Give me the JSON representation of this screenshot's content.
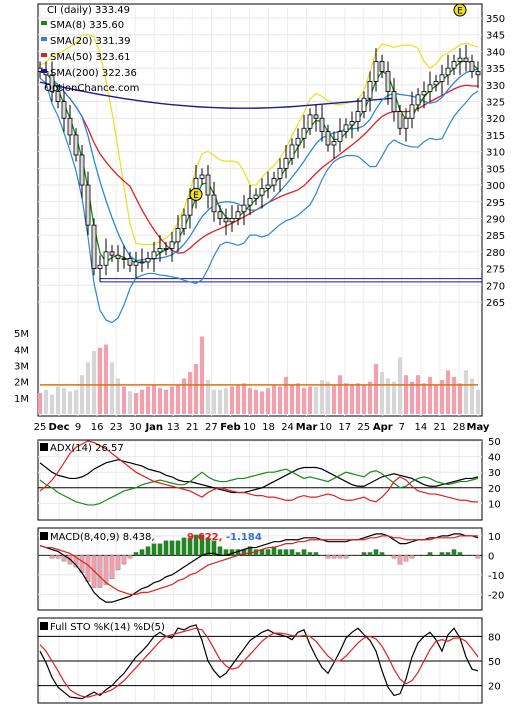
{
  "colors": {
    "sma8": "#1a8a1a",
    "sma20": "#2f86d4",
    "sma50": "#e02020",
    "sma200": "#1a1a9a",
    "upper_band": "#e8e020",
    "up_candle": "#111111",
    "up_fill": "#ffffff",
    "down_fill": "#d8d8d8",
    "volume_up": "#f2a0ae",
    "volume_down": "#d6d6d6",
    "volume_avg": "#e07010",
    "adx": "#000000",
    "plus_di": "#1a8a1a",
    "minus_di": "#e02020",
    "macd": "#000000",
    "signal": "#e02020",
    "hist_pos": "#1a8a1a",
    "hist_neg": "#f2a0ae",
    "sto_k": "#000000",
    "sto_d": "#e02020",
    "marker_fill": "#f0e020"
  },
  "legend": {
    "title": "CI (daily) 333.49",
    "sma8": "SMA(8) 335.60",
    "sma20": "SMA(20) 331.39",
    "sma50": "SMA(50) 323.61",
    "sma200": "SMA(200) 322.36",
    "watermark": "OptionChance.com"
  },
  "chart_data": [
    {
      "type": "candlestick",
      "panel": "price",
      "ylim": [
        262,
        353
      ],
      "y_ticks": [
        350,
        345,
        340,
        335,
        330,
        325,
        320,
        315,
        310,
        305,
        300,
        295,
        290,
        285,
        280,
        275,
        270,
        265
      ],
      "x_tick_labels": [
        "25",
        "Dec",
        "9",
        "16",
        "23",
        "30",
        "Jan",
        "13",
        "21",
        "27",
        "Feb",
        "10",
        "18",
        "24",
        "Mar",
        "10",
        "17",
        "25",
        "Apr",
        "7",
        "14",
        "21",
        "28",
        "May"
      ],
      "closes": [
        334,
        333,
        328,
        325,
        320,
        315,
        309,
        300,
        288,
        275,
        276,
        280,
        279,
        278,
        278,
        276,
        277,
        277,
        278,
        280,
        281,
        281,
        283,
        287,
        291,
        296,
        302,
        303,
        297,
        292,
        290,
        289,
        290,
        292,
        294,
        296,
        297,
        299,
        300,
        302,
        305,
        308,
        312,
        314,
        317,
        321,
        320,
        316,
        312,
        313,
        316,
        318,
        319,
        322,
        326,
        331,
        337,
        334,
        328,
        322,
        317,
        320,
        324,
        327,
        328,
        330,
        331,
        333,
        335,
        337,
        338,
        337,
        334,
        333
      ],
      "support_lines": [
        272,
        271
      ],
      "earnings_markers": [
        {
          "label": "E",
          "x_index": 26
        },
        {
          "label": "E",
          "x_index": 70
        }
      ]
    },
    {
      "type": "bar",
      "panel": "volume",
      "y_tick_labels": [
        "5M",
        "4M",
        "3M",
        "2M",
        "1M"
      ],
      "values_millions": [
        1.3,
        1.5,
        1.2,
        1.7,
        1.6,
        1.4,
        1.5,
        2.4,
        3.2,
        3.9,
        4.1,
        4.3,
        3.2,
        2.2,
        1.7,
        1.4,
        1.3,
        1.5,
        1.7,
        1.8,
        1.6,
        1.5,
        1.7,
        1.8,
        2.2,
        2.6,
        3.1,
        4.8,
        2.1,
        1.5,
        1.5,
        1.6,
        1.7,
        1.8,
        1.9,
        1.6,
        1.5,
        1.4,
        1.6,
        1.8,
        1.7,
        2.3,
        1.8,
        1.9,
        1.6,
        1.7,
        1.7,
        2.1,
        2.0,
        1.8,
        2.4,
        1.9,
        1.8,
        1.9,
        1.8,
        2.0,
        3.1,
        2.6,
        2.2,
        2.0,
        3.5,
        2.4,
        2.0,
        2.4,
        1.9,
        2.3,
        1.8,
        2.1,
        2.7,
        2.3,
        1.9,
        2.7,
        2.2,
        1.5
      ],
      "avg_millions": 1.8
    },
    {
      "type": "line",
      "panel": "ADX",
      "title": "ADX(14) 26.57",
      "ylim": [
        0,
        50
      ],
      "y_ticks": [
        50,
        40,
        30,
        20,
        10
      ],
      "series": [
        {
          "name": "ADX",
          "values": [
            36,
            33,
            30,
            28,
            27,
            26,
            26,
            27,
            29,
            32,
            34,
            36,
            37,
            38,
            37,
            36,
            35,
            34,
            32,
            31,
            30,
            28,
            27,
            25,
            24,
            24,
            23,
            22,
            21,
            20,
            19,
            18,
            17,
            17,
            17,
            18,
            19,
            20,
            22,
            24,
            26,
            28,
            30,
            32,
            33,
            33,
            33,
            32,
            30,
            28,
            26,
            24,
            22,
            21,
            21,
            23,
            25,
            27,
            28,
            29,
            28,
            27,
            26,
            24,
            22,
            21,
            21,
            22,
            23,
            24,
            25,
            26,
            26,
            27
          ]
        },
        {
          "name": "+DI",
          "values": [
            25,
            22,
            20,
            17,
            15,
            13,
            11,
            10,
            9,
            9,
            10,
            12,
            14,
            16,
            18,
            19,
            20,
            22,
            23,
            24,
            25,
            24,
            23,
            22,
            22,
            24,
            27,
            30,
            27,
            25,
            24,
            24,
            25,
            26,
            26,
            27,
            28,
            29,
            30,
            30,
            31,
            32,
            30,
            28,
            26,
            27,
            26,
            25,
            24,
            26,
            28,
            30,
            29,
            28,
            27,
            30,
            31,
            29,
            26,
            23,
            20,
            21,
            24,
            26,
            27,
            26,
            24,
            23,
            22,
            23,
            24,
            24,
            25,
            26
          ]
        },
        {
          "name": "-DI",
          "values": [
            18,
            21,
            25,
            30,
            36,
            42,
            46,
            48,
            50,
            49,
            47,
            45,
            42,
            39,
            36,
            33,
            30,
            28,
            26,
            24,
            23,
            22,
            21,
            20,
            19,
            18,
            16,
            14,
            17,
            19,
            20,
            19,
            18,
            17,
            17,
            16,
            15,
            15,
            14,
            14,
            13,
            12,
            12,
            14,
            15,
            14,
            14,
            15,
            16,
            15,
            13,
            12,
            12,
            13,
            14,
            12,
            11,
            14,
            18,
            24,
            27,
            25,
            21,
            18,
            17,
            16,
            16,
            15,
            14,
            13,
            12,
            12,
            11,
            11
          ]
        }
      ]
    },
    {
      "type": "line",
      "panel": "MACD",
      "title": "MACD(8,40,9) 8.438,",
      "values_text": {
        "macd": "9.622,",
        "diff": "-1.184"
      },
      "ylim": [
        -27,
        13
      ],
      "y_ticks": [
        10,
        0,
        -10,
        -20
      ],
      "series": [
        {
          "name": "MACD",
          "values": [
            5,
            4,
            3,
            2,
            0,
            -2,
            -5,
            -9,
            -14,
            -19,
            -22,
            -24,
            -24,
            -23,
            -22,
            -21,
            -19,
            -17,
            -16,
            -14,
            -13,
            -11,
            -10,
            -8,
            -6,
            -4,
            -2,
            0,
            1,
            1,
            0,
            0,
            1,
            2,
            3,
            4,
            4,
            5,
            6,
            7,
            7,
            8,
            8,
            8,
            9,
            9,
            9,
            8,
            7,
            7,
            7,
            7,
            8,
            8,
            9,
            10,
            11,
            11,
            10,
            8,
            6,
            6,
            7,
            8,
            8,
            9,
            9,
            10,
            10,
            11,
            11,
            10,
            10,
            9
          ]
        },
        {
          "name": "Signal",
          "values": [
            5,
            4,
            4,
            3,
            2,
            1,
            -1,
            -3,
            -5,
            -8,
            -11,
            -14,
            -16,
            -18,
            -19,
            -20,
            -20,
            -19,
            -19,
            -18,
            -17,
            -16,
            -15,
            -13,
            -12,
            -10,
            -9,
            -7,
            -5,
            -4,
            -3,
            -2,
            -1,
            0,
            1,
            1,
            2,
            3,
            4,
            4,
            5,
            6,
            6,
            7,
            7,
            8,
            8,
            8,
            8,
            8,
            8,
            8,
            8,
            8,
            8,
            9,
            9,
            10,
            10,
            9,
            9,
            8,
            8,
            8,
            8,
            8,
            9,
            9,
            9,
            9,
            10,
            10,
            10,
            10
          ]
        }
      ]
    },
    {
      "type": "line",
      "panel": "STO",
      "title": "Full STO %K(14) %D(5)",
      "ylim": [
        0,
        100
      ],
      "y_ticks": [
        80,
        50,
        20
      ],
      "series": [
        {
          "name": "%K",
          "values": [
            62,
            48,
            30,
            18,
            12,
            6,
            5,
            4,
            8,
            12,
            8,
            15,
            20,
            28,
            35,
            45,
            55,
            62,
            70,
            80,
            85,
            80,
            78,
            90,
            88,
            92,
            94,
            75,
            50,
            38,
            30,
            35,
            45,
            55,
            65,
            75,
            80,
            85,
            88,
            84,
            82,
            80,
            76,
            85,
            88,
            70,
            55,
            42,
            35,
            48,
            62,
            78,
            85,
            90,
            82,
            75,
            62,
            38,
            18,
            8,
            10,
            28,
            55,
            72,
            80,
            85,
            76,
            62,
            82,
            90,
            78,
            55,
            40,
            38
          ]
        },
        {
          "name": "%D",
          "values": [
            70,
            62,
            50,
            38,
            25,
            15,
            10,
            7,
            6,
            8,
            10,
            12,
            15,
            20,
            26,
            34,
            42,
            50,
            58,
            66,
            74,
            80,
            82,
            84,
            86,
            88,
            90,
            88,
            78,
            65,
            52,
            44,
            40,
            42,
            50,
            58,
            66,
            74,
            80,
            84,
            84,
            83,
            81,
            80,
            81,
            80,
            74,
            65,
            56,
            50,
            50,
            56,
            64,
            72,
            78,
            80,
            77,
            68,
            55,
            40,
            28,
            22,
            26,
            36,
            50,
            64,
            74,
            76,
            74,
            78,
            78,
            74,
            65,
            55
          ]
        }
      ]
    }
  ]
}
